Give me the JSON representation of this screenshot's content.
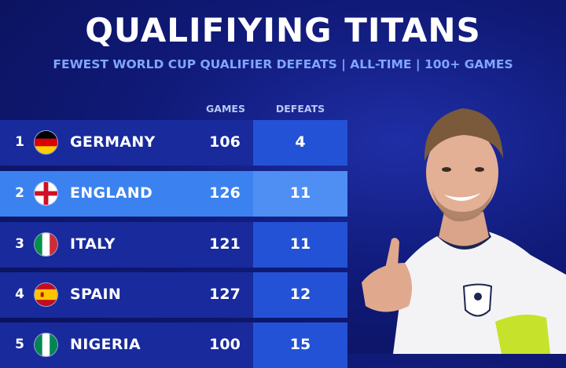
{
  "title": "QUALIFIYING TITANS",
  "subtitle": "FEWEST WORLD CUP QUALIFIER DEFEATS | ALL-TIME | 100+ GAMES",
  "colors": {
    "background": "#101a78",
    "subtitle": "#7fa6ff",
    "row_dark": "#182a9c",
    "row_light": "#3b82f0",
    "defeat_dark": "#2352d6",
    "defeat_light": "#4f8ff4"
  },
  "chart_data": {
    "type": "table",
    "columns": [
      "GAMES",
      "DEFEATS"
    ],
    "rows": [
      {
        "rank": "1",
        "country": "GERMANY",
        "flag": "germany-flag-icon",
        "games": "106",
        "defeats": "4"
      },
      {
        "rank": "2",
        "country": "ENGLAND",
        "flag": "england-flag-icon",
        "games": "126",
        "defeats": "11"
      },
      {
        "rank": "3",
        "country": "ITALY",
        "flag": "italy-flag-icon",
        "games": "121",
        "defeats": "11"
      },
      {
        "rank": "4",
        "country": "SPAIN",
        "flag": "spain-flag-icon",
        "games": "127",
        "defeats": "12"
      },
      {
        "rank": "5",
        "country": "NIGERIA",
        "flag": "nigeria-flag-icon",
        "games": "100",
        "defeats": "15"
      }
    ]
  },
  "image": {
    "player_photo": "player-photo"
  }
}
